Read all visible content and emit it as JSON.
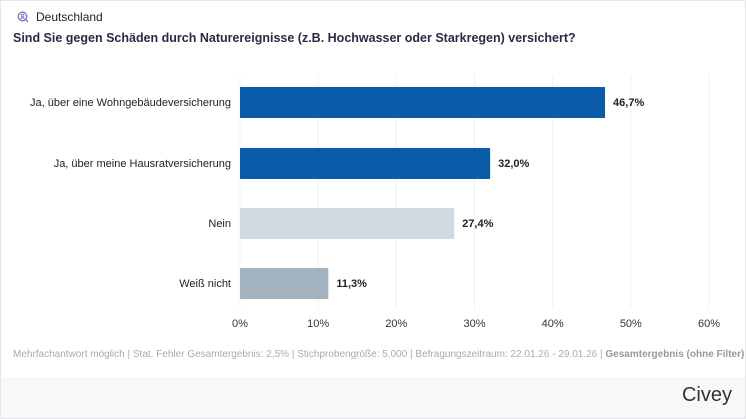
{
  "header": {
    "region": "Deutschland",
    "region_icon": "search-person-icon",
    "question": "Sind Sie gegen Schäden durch Naturereignisse (z.B. Hochwasser oder Starkregen) versichert?"
  },
  "chart_data": {
    "type": "bar",
    "orientation": "horizontal",
    "categories": [
      "Ja, über eine Wohngebäudeversicherung",
      "Ja, über meine Hausratversicherung",
      "Nein",
      "Weiß nicht"
    ],
    "values": [
      46.7,
      32.0,
      27.4,
      11.3
    ],
    "data_labels": [
      "46,7%",
      "32,0%",
      "27,4%",
      "11,3%"
    ],
    "colors": [
      "#0b5ca8",
      "#0b5ca8",
      "#d1d9e0",
      "#a2b2bf"
    ],
    "xlim": [
      0,
      60
    ],
    "xticks": [
      "0%",
      "10%",
      "20%",
      "30%",
      "40%",
      "50%",
      "60%"
    ],
    "grid": true
  },
  "footer": {
    "note": "Mehrfachantwort möglich | Stat. Fehler Gesamtergebnis: 2,5% | Stichprobengröße: 5.000 | Befragungszeitraum: 22.01.26 - 29.01.26 | ",
    "filter": "Gesamtergebnis (ohne Filter)"
  },
  "brand": "Civey"
}
